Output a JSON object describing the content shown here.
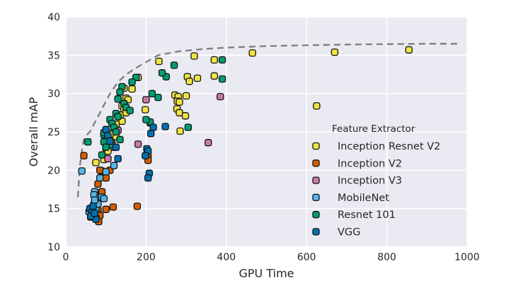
{
  "chart_data": {
    "type": "scatter",
    "xlabel": "GPU Time",
    "ylabel": "Overall mAP",
    "xlim": [
      0,
      1000
    ],
    "ylim": [
      10,
      40
    ],
    "x_ticks": [
      "0",
      "200",
      "400",
      "600",
      "800",
      "1000"
    ],
    "y_ticks": [
      "10",
      "15",
      "20",
      "25",
      "30",
      "35",
      "40"
    ],
    "grid": true,
    "background": "#eaeaf2",
    "legend_title": "Feature Extractor",
    "legend_position": "center-right",
    "frontier": {
      "style": "dashed",
      "color": "#808080",
      "x": [
        30,
        32,
        35,
        40,
        45,
        52,
        60,
        70,
        80,
        95,
        110,
        130,
        150,
        180,
        230,
        280,
        340,
        400,
        500,
        600,
        700,
        800,
        900,
        985
      ],
      "y": [
        16.5,
        18.0,
        20.5,
        22.5,
        24.0,
        24.6,
        25.0,
        26.0,
        27.0,
        28.5,
        30.0,
        31.5,
        32.5,
        33.5,
        35.0,
        35.5,
        35.8,
        36.0,
        36.2,
        36.3,
        36.4,
        36.45,
        36.5,
        36.5
      ]
    },
    "series": [
      {
        "name": "Inception Resnet V2",
        "color": "#f0e442",
        "points": [
          [
            855,
            35.7
          ],
          [
            670,
            35.4
          ],
          [
            465,
            35.3
          ],
          [
            625,
            28.4
          ],
          [
            320,
            34.9
          ],
          [
            370,
            34.4
          ],
          [
            370,
            32.3
          ],
          [
            303,
            32.2
          ],
          [
            328,
            32.0
          ],
          [
            308,
            31.6
          ],
          [
            232,
            34.2
          ],
          [
            180,
            32.1
          ],
          [
            272,
            29.8
          ],
          [
            280,
            29.6
          ],
          [
            300,
            29.7
          ],
          [
            278,
            29.0
          ],
          [
            283,
            28.9
          ],
          [
            277,
            28.0
          ],
          [
            283,
            27.5
          ],
          [
            298,
            27.1
          ],
          [
            285,
            25.1
          ],
          [
            198,
            27.9
          ],
          [
            210,
            26.2
          ],
          [
            145,
            30.7
          ],
          [
            165,
            30.6
          ],
          [
            150,
            29.4
          ],
          [
            155,
            29.2
          ],
          [
            140,
            28.4
          ],
          [
            145,
            28.0
          ],
          [
            150,
            27.5
          ],
          [
            135,
            27.2
          ],
          [
            140,
            26.4
          ],
          [
            125,
            26.0
          ],
          [
            120,
            25.1
          ],
          [
            125,
            24.4
          ],
          [
            110,
            24.7
          ],
          [
            115,
            23.5
          ],
          [
            100,
            22.9
          ],
          [
            105,
            22.5
          ],
          [
            95,
            21.4
          ],
          [
            75,
            21.0
          ],
          [
            90,
            19.9
          ]
        ]
      },
      {
        "name": "Inception V2",
        "color": "#d55e00",
        "points": [
          [
            45,
            21.9
          ],
          [
            85,
            20.0
          ],
          [
            80,
            18.2
          ],
          [
            90,
            17.2
          ],
          [
            80,
            14.8
          ],
          [
            85,
            14.1
          ],
          [
            75,
            13.8
          ],
          [
            82,
            13.3
          ],
          [
            100,
            14.9
          ],
          [
            118,
            15.2
          ],
          [
            178,
            15.3
          ],
          [
            205,
            21.8
          ],
          [
            205,
            21.3
          ],
          [
            110,
            20.0
          ],
          [
            100,
            19.0
          ]
        ]
      },
      {
        "name": "Inception V3",
        "color": "#cc79a7",
        "points": [
          [
            200,
            29.2
          ],
          [
            385,
            29.6
          ],
          [
            355,
            23.6
          ],
          [
            180,
            23.4
          ],
          [
            130,
            25.2
          ],
          [
            120,
            23.0
          ],
          [
            105,
            21.5
          ]
        ]
      },
      {
        "name": "MobileNet",
        "color": "#56b4e9",
        "points": [
          [
            40,
            19.9
          ],
          [
            58,
            14.6
          ],
          [
            62,
            13.9
          ],
          [
            65,
            15.1
          ],
          [
            70,
            15.5
          ],
          [
            72,
            17.2
          ],
          [
            75,
            16.4
          ],
          [
            85,
            19.0
          ],
          [
            90,
            16.5
          ],
          [
            95,
            16.3
          ],
          [
            100,
            19.8
          ],
          [
            120,
            20.6
          ],
          [
            70,
            16.8
          ],
          [
            72,
            15.8
          ],
          [
            75,
            14.9
          ],
          [
            80,
            15.6
          ],
          [
            68,
            14.2
          ],
          [
            72,
            16.1
          ]
        ]
      },
      {
        "name": "Resnet 101",
        "color": "#009e73",
        "points": [
          [
            390,
            34.4
          ],
          [
            390,
            31.9
          ],
          [
            250,
            32.2
          ],
          [
            270,
            33.7
          ],
          [
            240,
            32.7
          ],
          [
            230,
            29.5
          ],
          [
            215,
            30.0
          ],
          [
            210,
            26.3
          ],
          [
            200,
            26.6
          ],
          [
            175,
            32.1
          ],
          [
            165,
            31.5
          ],
          [
            140,
            30.9
          ],
          [
            135,
            30.2
          ],
          [
            130,
            29.3
          ],
          [
            145,
            28.7
          ],
          [
            150,
            28.2
          ],
          [
            160,
            27.8
          ],
          [
            125,
            27.4
          ],
          [
            130,
            27.0
          ],
          [
            110,
            26.6
          ],
          [
            115,
            26.1
          ],
          [
            120,
            25.6
          ],
          [
            100,
            25.1
          ],
          [
            95,
            24.6
          ],
          [
            105,
            24.2
          ],
          [
            115,
            23.3
          ],
          [
            95,
            23.7
          ],
          [
            100,
            23.0
          ],
          [
            90,
            22.0
          ],
          [
            55,
            23.7
          ],
          [
            305,
            25.6
          ],
          [
            95,
            24.9
          ],
          [
            125,
            25.0
          ],
          [
            135,
            24.0
          ]
        ]
      },
      {
        "name": "VGG",
        "color": "#0072b2",
        "points": [
          [
            202,
            22.8
          ],
          [
            205,
            22.5
          ],
          [
            198,
            21.9
          ],
          [
            208,
            19.6
          ],
          [
            205,
            19.0
          ],
          [
            218,
            25.6
          ],
          [
            212,
            24.8
          ],
          [
            248,
            25.7
          ],
          [
            100,
            25.3
          ],
          [
            105,
            24.5
          ],
          [
            110,
            23.8
          ],
          [
            125,
            23.0
          ],
          [
            130,
            21.5
          ],
          [
            60,
            15.0
          ],
          [
            65,
            14.5
          ],
          [
            70,
            13.9
          ],
          [
            75,
            13.6
          ],
          [
            62,
            14.0
          ],
          [
            68,
            15.3
          ],
          [
            72,
            14.4
          ]
        ]
      }
    ]
  }
}
